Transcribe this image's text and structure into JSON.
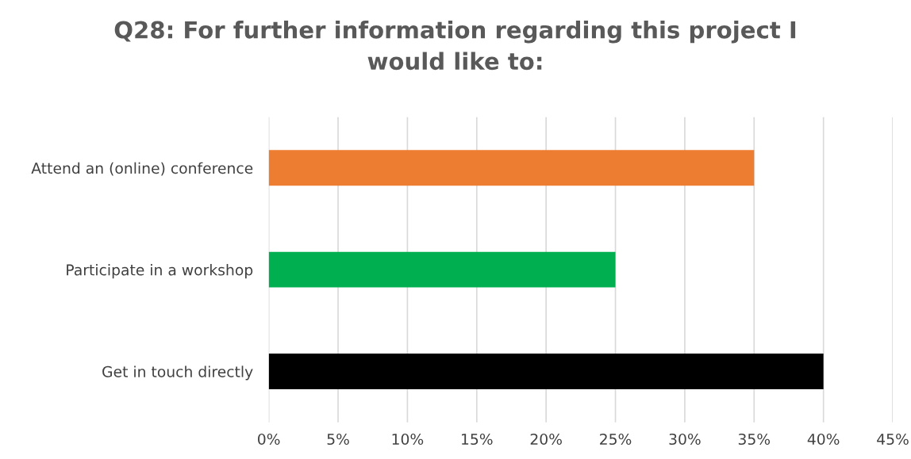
{
  "chart_data": {
    "type": "bar",
    "orientation": "horizontal",
    "title": "Q28: For further information regarding this project I\nwould like to:",
    "categories": [
      "Attend an (online) conference",
      "Participate in a workshop",
      "Get in touch directly"
    ],
    "values": [
      35,
      25,
      40
    ],
    "colors": [
      "#ed7d31",
      "#00b050",
      "#000000"
    ],
    "xlim": [
      0,
      45
    ],
    "xticks": [
      {
        "value": 0,
        "label": "0%"
      },
      {
        "value": 5,
        "label": "5%"
      },
      {
        "value": 10,
        "label": "10%"
      },
      {
        "value": 15,
        "label": "15%"
      },
      {
        "value": 20,
        "label": "20%"
      },
      {
        "value": 25,
        "label": "25%"
      },
      {
        "value": 30,
        "label": "30%"
      },
      {
        "value": 35,
        "label": "35%"
      },
      {
        "value": 40,
        "label": "40%"
      },
      {
        "value": 45,
        "label": "45%"
      }
    ],
    "grid": "x"
  }
}
